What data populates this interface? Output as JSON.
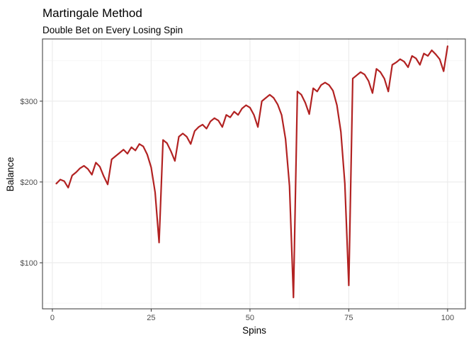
{
  "chart_data": {
    "type": "line",
    "title": "Martingale Method",
    "subtitle": "Double Bet on Every Losing Spin",
    "xlabel": "Spins",
    "ylabel": "Balance",
    "xlim": [
      -2.5,
      104.5
    ],
    "ylim": [
      43,
      377
    ],
    "x_ticks": [
      0,
      25,
      50,
      75,
      100
    ],
    "x_tick_labels": [
      "0",
      "25",
      "50",
      "75",
      "100"
    ],
    "y_ticks": [
      100,
      200,
      300
    ],
    "y_tick_labels": [
      "$100",
      "$200",
      "$300"
    ],
    "grid": true,
    "legend": "none",
    "line_color": "#b22222",
    "series": [
      {
        "x": [
          1,
          2,
          3,
          4,
          5,
          6,
          7,
          8,
          9,
          10,
          11,
          12,
          13,
          14,
          15,
          16,
          17,
          18,
          19,
          20,
          21,
          22,
          23,
          24,
          25,
          26,
          27,
          28,
          29,
          30,
          31,
          32,
          33,
          34,
          35,
          36,
          37,
          38,
          39,
          40,
          41,
          42,
          43,
          44,
          45,
          46,
          47,
          48,
          49,
          50,
          51,
          52,
          53,
          54,
          55,
          56,
          57,
          58,
          59,
          60,
          61,
          62,
          63,
          64,
          65,
          66,
          67,
          68,
          69,
          70,
          71,
          72,
          73,
          74,
          75,
          76,
          77,
          78,
          79,
          80,
          81,
          82,
          83,
          84,
          85,
          86,
          87,
          88,
          89,
          90,
          91,
          92,
          93,
          94,
          95,
          96,
          97,
          98,
          99,
          100
        ],
        "values": [
          198,
          203,
          201,
          193,
          208,
          212,
          217,
          220,
          216,
          209,
          224,
          219,
          207,
          197,
          228,
          232,
          236,
          240,
          235,
          243,
          239,
          247,
          244,
          234,
          218,
          187,
          125,
          252,
          248,
          238,
          226,
          256,
          260,
          256,
          247,
          263,
          268,
          271,
          266,
          275,
          279,
          276,
          268,
          283,
          280,
          287,
          283,
          291,
          295,
          292,
          283,
          268,
          300,
          304,
          308,
          304,
          296,
          283,
          253,
          195,
          57,
          312,
          308,
          298,
          284,
          316,
          312,
          320,
          323,
          320,
          313,
          295,
          262,
          198,
          72,
          328,
          332,
          336,
          333,
          325,
          310,
          340,
          336,
          328,
          312,
          345,
          348,
          352,
          349,
          342,
          356,
          353,
          345,
          359,
          356,
          363,
          358,
          352,
          337,
          368
        ]
      }
    ]
  }
}
